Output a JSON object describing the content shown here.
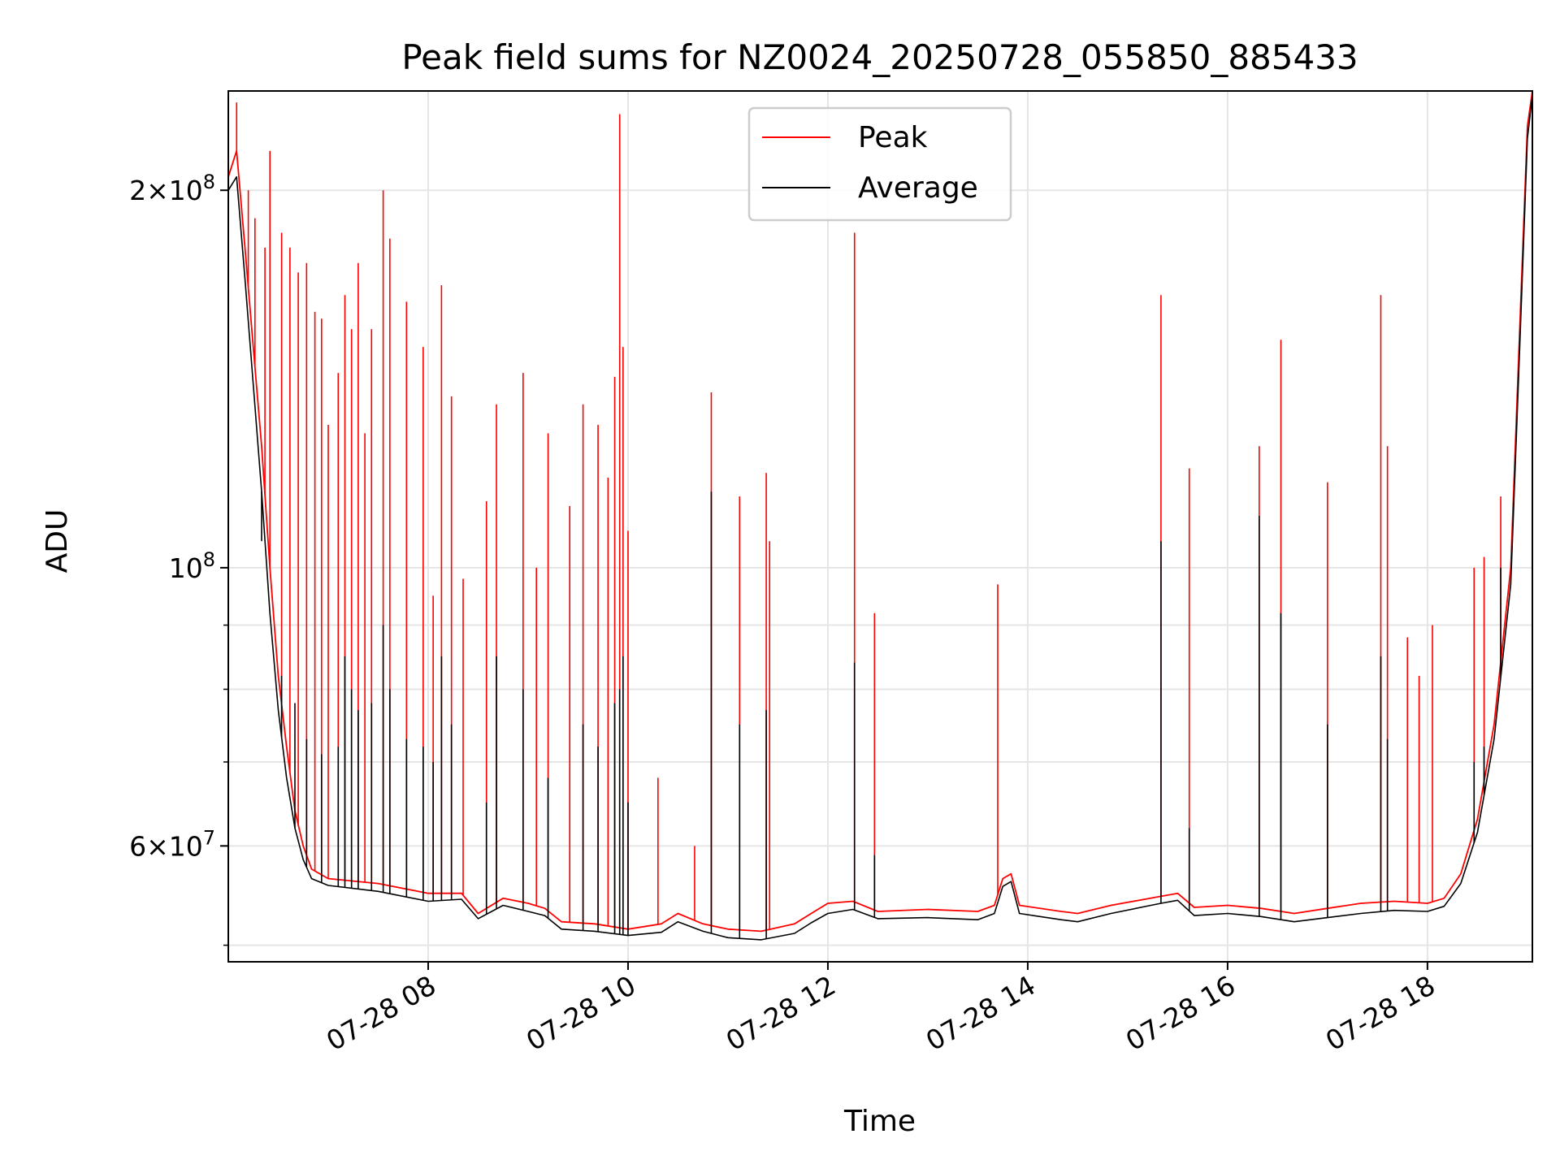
{
  "chart_data": {
    "type": "line",
    "title": "Peak field sums for NZ0024_20250728_055850_885433",
    "xlabel": "Time",
    "ylabel": "ADU",
    "y_scale": "log",
    "xlim": [
      "2025-07-28T06:00",
      "2025-07-28T19:03"
    ],
    "ylim": [
      48500000,
      240000000
    ],
    "grid": true,
    "legend": {
      "placement": "top-center"
    },
    "x_ticks": [
      {
        "value": "2025-07-28T08:00",
        "label": "07-28 08"
      },
      {
        "value": "2025-07-28T10:00",
        "label": "07-28 10"
      },
      {
        "value": "2025-07-28T12:00",
        "label": "07-28 12"
      },
      {
        "value": "2025-07-28T14:00",
        "label": "07-28 14"
      },
      {
        "value": "2025-07-28T16:00",
        "label": "07-28 16"
      },
      {
        "value": "2025-07-28T18:00",
        "label": "07-28 18"
      }
    ],
    "y_major_ticks": [
      {
        "value": 60000000,
        "base": "6",
        "exp": "7"
      },
      {
        "value": 100000000,
        "base": "",
        "exp": "8"
      },
      {
        "value": 200000000,
        "base": "2",
        "exp": "8"
      }
    ],
    "y_minor_ticks": [
      50000000,
      70000000,
      80000000,
      90000000
    ],
    "series": [
      {
        "name": "Peak",
        "color": "#ff0000",
        "points": [
          [
            "2025-07-28T06:00",
            205000000
          ],
          [
            "2025-07-28T06:05",
            215000000
          ],
          [
            "2025-07-28T06:10",
            180000000
          ],
          [
            "2025-07-28T06:15",
            150000000
          ],
          [
            "2025-07-28T06:20",
            125000000
          ],
          [
            "2025-07-28T06:25",
            100000000
          ],
          [
            "2025-07-28T06:30",
            82000000
          ],
          [
            "2025-07-28T06:35",
            72000000
          ],
          [
            "2025-07-28T06:40",
            64000000
          ],
          [
            "2025-07-28T06:45",
            60000000
          ],
          [
            "2025-07-28T06:50",
            57500000
          ],
          [
            "2025-07-28T07:00",
            56500000
          ],
          [
            "2025-07-28T07:30",
            56000000
          ],
          [
            "2025-07-28T08:00",
            55000000
          ],
          [
            "2025-07-28T08:20",
            55000000
          ],
          [
            "2025-07-28T08:30",
            53000000
          ],
          [
            "2025-07-28T08:45",
            54500000
          ],
          [
            "2025-07-28T09:00",
            54000000
          ],
          [
            "2025-07-28T09:10",
            53500000
          ],
          [
            "2025-07-28T09:20",
            52200000
          ],
          [
            "2025-07-28T09:40",
            52000000
          ],
          [
            "2025-07-28T10:00",
            51500000
          ],
          [
            "2025-07-28T10:20",
            52000000
          ],
          [
            "2025-07-28T10:30",
            53000000
          ],
          [
            "2025-07-28T10:45",
            52000000
          ],
          [
            "2025-07-28T11:00",
            51500000
          ],
          [
            "2025-07-28T11:20",
            51300000
          ],
          [
            "2025-07-28T11:40",
            52000000
          ],
          [
            "2025-07-28T11:50",
            53000000
          ],
          [
            "2025-07-28T12:00",
            54000000
          ],
          [
            "2025-07-28T12:15",
            54200000
          ],
          [
            "2025-07-28T12:30",
            53200000
          ],
          [
            "2025-07-28T13:00",
            53400000
          ],
          [
            "2025-07-28T13:30",
            53200000
          ],
          [
            "2025-07-28T13:40",
            53800000
          ],
          [
            "2025-07-28T13:45",
            56500000
          ],
          [
            "2025-07-28T13:50",
            57000000
          ],
          [
            "2025-07-28T13:55",
            53800000
          ],
          [
            "2025-07-28T14:20",
            53200000
          ],
          [
            "2025-07-28T14:30",
            53000000
          ],
          [
            "2025-07-28T14:50",
            53800000
          ],
          [
            "2025-07-28T15:20",
            54700000
          ],
          [
            "2025-07-28T15:30",
            55000000
          ],
          [
            "2025-07-28T15:40",
            53600000
          ],
          [
            "2025-07-28T16:00",
            53800000
          ],
          [
            "2025-07-28T16:20",
            53500000
          ],
          [
            "2025-07-28T16:40",
            53000000
          ],
          [
            "2025-07-28T17:00",
            53500000
          ],
          [
            "2025-07-28T17:20",
            54000000
          ],
          [
            "2025-07-28T17:40",
            54200000
          ],
          [
            "2025-07-28T18:00",
            54000000
          ],
          [
            "2025-07-28T18:10",
            54500000
          ],
          [
            "2025-07-28T18:20",
            57000000
          ],
          [
            "2025-07-28T18:30",
            63000000
          ],
          [
            "2025-07-28T18:40",
            75000000
          ],
          [
            "2025-07-28T18:50",
            100000000
          ],
          [
            "2025-07-28T18:55",
            150000000
          ],
          [
            "2025-07-28T19:00",
            225000000
          ],
          [
            "2025-07-28T19:03",
            240000000
          ]
        ],
        "spikes": [
          [
            "2025-07-28T06:05",
            235000000
          ],
          [
            "2025-07-28T06:12",
            200000000
          ],
          [
            "2025-07-28T06:16",
            190000000
          ],
          [
            "2025-07-28T06:22",
            180000000
          ],
          [
            "2025-07-28T06:25",
            215000000
          ],
          [
            "2025-07-28T06:32",
            185000000
          ],
          [
            "2025-07-28T06:37",
            180000000
          ],
          [
            "2025-07-28T06:42",
            172000000
          ],
          [
            "2025-07-28T06:47",
            175000000
          ],
          [
            "2025-07-28T06:52",
            160000000
          ],
          [
            "2025-07-28T06:56",
            158000000
          ],
          [
            "2025-07-28T07:00",
            130000000
          ],
          [
            "2025-07-28T07:06",
            143000000
          ],
          [
            "2025-07-28T07:10",
            165000000
          ],
          [
            "2025-07-28T07:14",
            155000000
          ],
          [
            "2025-07-28T07:18",
            175000000
          ],
          [
            "2025-07-28T07:22",
            128000000
          ],
          [
            "2025-07-28T07:26",
            155000000
          ],
          [
            "2025-07-28T07:33",
            200000000
          ],
          [
            "2025-07-28T07:37",
            183000000
          ],
          [
            "2025-07-28T07:47",
            163000000
          ],
          [
            "2025-07-28T07:57",
            150000000
          ],
          [
            "2025-07-28T08:03",
            95000000
          ],
          [
            "2025-07-28T08:08",
            168000000
          ],
          [
            "2025-07-28T08:14",
            137000000
          ],
          [
            "2025-07-28T08:21",
            98000000
          ],
          [
            "2025-07-28T08:35",
            113000000
          ],
          [
            "2025-07-28T08:41",
            135000000
          ],
          [
            "2025-07-28T08:57",
            143000000
          ],
          [
            "2025-07-28T09:05",
            100000000
          ],
          [
            "2025-07-28T09:12",
            128000000
          ],
          [
            "2025-07-28T09:25",
            112000000
          ],
          [
            "2025-07-28T09:33",
            135000000
          ],
          [
            "2025-07-28T09:42",
            130000000
          ],
          [
            "2025-07-28T09:48",
            118000000
          ],
          [
            "2025-07-28T09:52",
            142000000
          ],
          [
            "2025-07-28T09:55",
            230000000
          ],
          [
            "2025-07-28T09:57",
            150000000
          ],
          [
            "2025-07-28T10:00",
            107000000
          ],
          [
            "2025-07-28T10:18",
            68000000
          ],
          [
            "2025-07-28T10:40",
            60000000
          ],
          [
            "2025-07-28T10:50",
            138000000
          ],
          [
            "2025-07-28T11:07",
            114000000
          ],
          [
            "2025-07-28T11:23",
            119000000
          ],
          [
            "2025-07-28T11:25",
            105000000
          ],
          [
            "2025-07-28T12:16",
            185000000
          ],
          [
            "2025-07-28T12:28",
            92000000
          ],
          [
            "2025-07-28T13:42",
            97000000
          ],
          [
            "2025-07-28T15:20",
            165000000
          ],
          [
            "2025-07-28T15:37",
            120000000
          ],
          [
            "2025-07-28T16:19",
            125000000
          ],
          [
            "2025-07-28T16:32",
            152000000
          ],
          [
            "2025-07-28T17:00",
            117000000
          ],
          [
            "2025-07-28T17:32",
            165000000
          ],
          [
            "2025-07-28T17:36",
            125000000
          ],
          [
            "2025-07-28T17:48",
            88000000
          ],
          [
            "2025-07-28T17:55",
            82000000
          ],
          [
            "2025-07-28T18:03",
            90000000
          ],
          [
            "2025-07-28T18:28",
            100000000
          ],
          [
            "2025-07-28T18:34",
            102000000
          ],
          [
            "2025-07-28T18:44",
            114000000
          ]
        ]
      },
      {
        "name": "Average",
        "color": "#000000",
        "points": [
          [
            "2025-07-28T06:00",
            200000000
          ],
          [
            "2025-07-28T06:05",
            205000000
          ],
          [
            "2025-07-28T06:10",
            170000000
          ],
          [
            "2025-07-28T06:15",
            140000000
          ],
          [
            "2025-07-28T06:20",
            115000000
          ],
          [
            "2025-07-28T06:25",
            92000000
          ],
          [
            "2025-07-28T06:30",
            77000000
          ],
          [
            "2025-07-28T06:35",
            68000000
          ],
          [
            "2025-07-28T06:40",
            62000000
          ],
          [
            "2025-07-28T06:45",
            58500000
          ],
          [
            "2025-07-28T06:50",
            56500000
          ],
          [
            "2025-07-28T07:00",
            55800000
          ],
          [
            "2025-07-28T07:30",
            55200000
          ],
          [
            "2025-07-28T08:00",
            54200000
          ],
          [
            "2025-07-28T08:20",
            54400000
          ],
          [
            "2025-07-28T08:30",
            52500000
          ],
          [
            "2025-07-28T08:45",
            53800000
          ],
          [
            "2025-07-28T09:00",
            53200000
          ],
          [
            "2025-07-28T09:10",
            52800000
          ],
          [
            "2025-07-28T09:20",
            51500000
          ],
          [
            "2025-07-28T09:40",
            51300000
          ],
          [
            "2025-07-28T10:00",
            50900000
          ],
          [
            "2025-07-28T10:20",
            51200000
          ],
          [
            "2025-07-28T10:30",
            52200000
          ],
          [
            "2025-07-28T10:45",
            51300000
          ],
          [
            "2025-07-28T11:00",
            50700000
          ],
          [
            "2025-07-28T11:20",
            50500000
          ],
          [
            "2025-07-28T11:40",
            51100000
          ],
          [
            "2025-07-28T11:50",
            52100000
          ],
          [
            "2025-07-28T12:00",
            53000000
          ],
          [
            "2025-07-28T12:15",
            53400000
          ],
          [
            "2025-07-28T12:30",
            52500000
          ],
          [
            "2025-07-28T13:00",
            52600000
          ],
          [
            "2025-07-28T13:30",
            52400000
          ],
          [
            "2025-07-28T13:40",
            53000000
          ],
          [
            "2025-07-28T13:45",
            55700000
          ],
          [
            "2025-07-28T13:50",
            56200000
          ],
          [
            "2025-07-28T13:55",
            53000000
          ],
          [
            "2025-07-28T14:20",
            52400000
          ],
          [
            "2025-07-28T14:30",
            52200000
          ],
          [
            "2025-07-28T14:50",
            53000000
          ],
          [
            "2025-07-28T15:20",
            54000000
          ],
          [
            "2025-07-28T15:30",
            54300000
          ],
          [
            "2025-07-28T15:40",
            52800000
          ],
          [
            "2025-07-28T16:00",
            53000000
          ],
          [
            "2025-07-28T16:20",
            52700000
          ],
          [
            "2025-07-28T16:40",
            52200000
          ],
          [
            "2025-07-28T17:00",
            52600000
          ],
          [
            "2025-07-28T17:20",
            53000000
          ],
          [
            "2025-07-28T17:40",
            53300000
          ],
          [
            "2025-07-28T18:00",
            53200000
          ],
          [
            "2025-07-28T18:10",
            53700000
          ],
          [
            "2025-07-28T18:20",
            56000000
          ],
          [
            "2025-07-28T18:30",
            61500000
          ],
          [
            "2025-07-28T18:40",
            73000000
          ],
          [
            "2025-07-28T18:50",
            97000000
          ],
          [
            "2025-07-28T18:55",
            145000000
          ],
          [
            "2025-07-28T19:00",
            220000000
          ],
          [
            "2025-07-28T19:03",
            238000000
          ]
        ],
        "spikes": [
          [
            "2025-07-28T06:20",
            105000000
          ],
          [
            "2025-07-28T06:32",
            82000000
          ],
          [
            "2025-07-28T06:40",
            78000000
          ],
          [
            "2025-07-28T06:47",
            73000000
          ],
          [
            "2025-07-28T06:56",
            71000000
          ],
          [
            "2025-07-28T07:06",
            72000000
          ],
          [
            "2025-07-28T07:10",
            85000000
          ],
          [
            "2025-07-28T07:14",
            80000000
          ],
          [
            "2025-07-28T07:18",
            77000000
          ],
          [
            "2025-07-28T07:26",
            78000000
          ],
          [
            "2025-07-28T07:33",
            90000000
          ],
          [
            "2025-07-28T07:37",
            80000000
          ],
          [
            "2025-07-28T07:47",
            73000000
          ],
          [
            "2025-07-28T07:57",
            72000000
          ],
          [
            "2025-07-28T08:03",
            70000000
          ],
          [
            "2025-07-28T08:08",
            85000000
          ],
          [
            "2025-07-28T08:14",
            75000000
          ],
          [
            "2025-07-28T08:35",
            65000000
          ],
          [
            "2025-07-28T08:41",
            85000000
          ],
          [
            "2025-07-28T08:57",
            80000000
          ],
          [
            "2025-07-28T09:12",
            68000000
          ],
          [
            "2025-07-28T09:33",
            75000000
          ],
          [
            "2025-07-28T09:42",
            72000000
          ],
          [
            "2025-07-28T09:52",
            78000000
          ],
          [
            "2025-07-28T09:55",
            80000000
          ],
          [
            "2025-07-28T09:57",
            85000000
          ],
          [
            "2025-07-28T10:00",
            65000000
          ],
          [
            "2025-07-28T10:50",
            115000000
          ],
          [
            "2025-07-28T11:07",
            75000000
          ],
          [
            "2025-07-28T11:23",
            77000000
          ],
          [
            "2025-07-28T12:16",
            84000000
          ],
          [
            "2025-07-28T12:28",
            59000000
          ],
          [
            "2025-07-28T15:20",
            105000000
          ],
          [
            "2025-07-28T15:37",
            62000000
          ],
          [
            "2025-07-28T16:19",
            110000000
          ],
          [
            "2025-07-28T16:32",
            92000000
          ],
          [
            "2025-07-28T17:00",
            75000000
          ],
          [
            "2025-07-28T17:32",
            85000000
          ],
          [
            "2025-07-28T17:36",
            73000000
          ],
          [
            "2025-07-28T18:28",
            70000000
          ],
          [
            "2025-07-28T18:34",
            72000000
          ],
          [
            "2025-07-28T18:44",
            100000000
          ]
        ]
      }
    ]
  }
}
